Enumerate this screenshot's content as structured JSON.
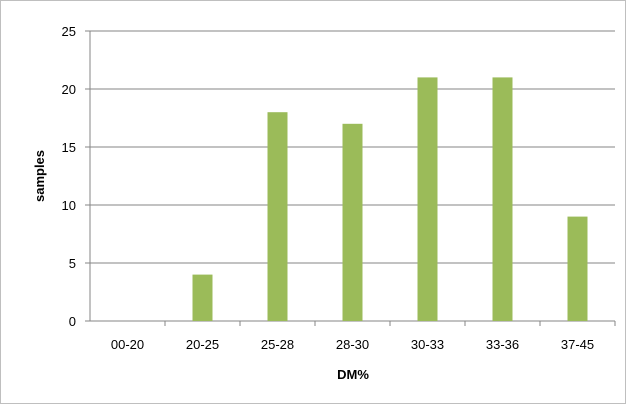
{
  "chart_data": {
    "type": "bar",
    "title": "",
    "xlabel": "DM%",
    "ylabel": "samples",
    "categories": [
      "00-20",
      "20-25",
      "25-28",
      "28-30",
      "30-33",
      "33-36",
      "37-45"
    ],
    "values": [
      0,
      4,
      18,
      17,
      21,
      21,
      9
    ],
    "ylim": [
      0,
      25
    ],
    "yticks": [
      0,
      5,
      10,
      15,
      20,
      25
    ],
    "grid": true,
    "legend": "none",
    "bar_color": "#9bbb59",
    "grid_color": "#868686"
  }
}
